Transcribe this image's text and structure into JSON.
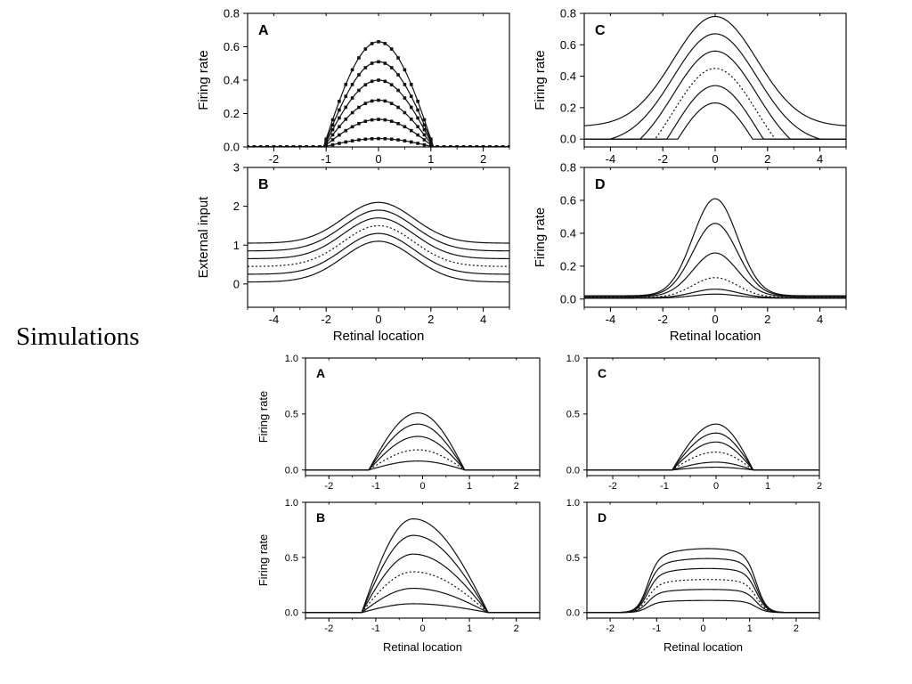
{
  "page": {
    "label": "Simulations"
  },
  "chart_data": [
    {
      "id": "top-A",
      "type": "line",
      "panel_letter": "A",
      "xlabel": "",
      "ylabel": "Firing rate",
      "xlim": [
        -2.5,
        2.5
      ],
      "ylim": [
        0,
        0.8
      ],
      "xticks": [
        -2,
        -1,
        0,
        1,
        2
      ],
      "yticks": [
        0.0,
        0.2,
        0.4,
        0.6,
        0.8
      ],
      "xtick_labels": [
        "-2",
        "-1",
        "0",
        "1",
        "2"
      ],
      "ytick_labels": [
        "0.0",
        "0.2",
        "0.4",
        "0.6",
        "0.8"
      ],
      "markers": true,
      "marker_x_step": 0.125,
      "curve": {
        "shape": "cosine",
        "center": 0,
        "half_width": 1.05
      },
      "series": [
        {
          "peak": 0.63,
          "style": "solid"
        },
        {
          "peak": 0.51,
          "style": "solid"
        },
        {
          "peak": 0.4,
          "style": "solid"
        },
        {
          "peak": 0.28,
          "style": "solid"
        },
        {
          "peak": 0.165,
          "style": "solid"
        },
        {
          "peak": 0.05,
          "style": "solid"
        }
      ]
    },
    {
      "id": "top-B",
      "type": "line",
      "panel_letter": "B",
      "xlabel": "Retinal location",
      "ylabel": "External input",
      "xlim": [
        -5,
        5
      ],
      "ylim": [
        -0.6,
        3
      ],
      "xticks": [
        -4,
        -2,
        0,
        2,
        4
      ],
      "yticks": [
        0,
        1,
        2,
        3
      ],
      "xtick_labels": [
        "-4",
        "-2",
        "0",
        "2",
        "4"
      ],
      "ytick_labels": [
        "0",
        "1",
        "2",
        "3"
      ],
      "markers": false,
      "curve": {
        "shape": "gaussian",
        "center": 0,
        "sigma": 1.35,
        "amplitude": 1.05
      },
      "series": [
        {
          "baseline": 1.05,
          "style": "solid"
        },
        {
          "baseline": 0.85,
          "style": "solid"
        },
        {
          "baseline": 0.65,
          "style": "solid"
        },
        {
          "baseline": 0.45,
          "style": "dotted"
        },
        {
          "baseline": 0.25,
          "style": "solid"
        },
        {
          "baseline": 0.05,
          "style": "solid"
        }
      ]
    },
    {
      "id": "top-C",
      "type": "line",
      "panel_letter": "C",
      "xlabel": "",
      "ylabel": "Firing rate",
      "xlim": [
        -5,
        5
      ],
      "ylim": [
        -0.05,
        0.8
      ],
      "xticks": [
        -4,
        -2,
        0,
        2,
        4
      ],
      "yticks": [
        0.0,
        0.2,
        0.4,
        0.6,
        0.8
      ],
      "xtick_labels": [
        "-4",
        "-2",
        "0",
        "2",
        "4"
      ],
      "ytick_labels": [
        "0.0",
        "0.2",
        "0.4",
        "0.6",
        "0.8"
      ],
      "markers": false,
      "curve": {
        "shape": "gaussian-offset",
        "center": 0,
        "sigma": 1.6,
        "amplitude": 0.7
      },
      "series": [
        {
          "offset": 0.08,
          "style": "solid"
        },
        {
          "offset": -0.03,
          "style": "solid"
        },
        {
          "offset": -0.14,
          "style": "solid"
        },
        {
          "offset": -0.25,
          "style": "dotted"
        },
        {
          "offset": -0.36,
          "style": "solid"
        },
        {
          "offset": -0.47,
          "style": "solid"
        }
      ]
    },
    {
      "id": "top-D",
      "type": "line",
      "panel_letter": "D",
      "xlabel": "Retinal location",
      "ylabel": "Firing rate",
      "xlim": [
        -5,
        5
      ],
      "ylim": [
        -0.05,
        0.8
      ],
      "xticks": [
        -4,
        -2,
        0,
        2,
        4
      ],
      "yticks": [
        0.0,
        0.2,
        0.4,
        0.6,
        0.8
      ],
      "xtick_labels": [
        "-4",
        "-2",
        "0",
        "2",
        "4"
      ],
      "ytick_labels": [
        "0.0",
        "0.2",
        "0.4",
        "0.6",
        "0.8"
      ],
      "markers": false,
      "curve": {
        "shape": "gaussian",
        "center": 0,
        "sigma": 0.85
      },
      "series": [
        {
          "peak": 0.61,
          "baseline": 0.02,
          "style": "solid"
        },
        {
          "peak": 0.46,
          "baseline": 0.018,
          "style": "solid"
        },
        {
          "peak": 0.28,
          "baseline": 0.015,
          "style": "solid"
        },
        {
          "peak": 0.13,
          "baseline": 0.01,
          "style": "dotted"
        },
        {
          "peak": 0.06,
          "baseline": 0.008,
          "style": "solid"
        },
        {
          "peak": 0.03,
          "baseline": 0.005,
          "style": "solid"
        }
      ]
    },
    {
      "id": "bottom-A",
      "type": "line",
      "panel_letter": "A",
      "xlabel": "",
      "ylabel": "Firing rate",
      "xlim": [
        -2.5,
        2.5
      ],
      "ylim": [
        -0.05,
        1.0
      ],
      "xticks": [
        -2,
        -1,
        0,
        1,
        2
      ],
      "yticks": [
        0.0,
        0.5,
        1.0
      ],
      "xtick_labels": [
        "-2",
        "-1",
        "0",
        "1",
        "2"
      ],
      "ytick_labels": [
        "0.0",
        "0.5",
        "1.0"
      ],
      "markers": false,
      "curve": {
        "shape": "cosine-skewed",
        "center": -0.1,
        "left_width": 1.05,
        "right_width": 1.0
      },
      "series": [
        {
          "peak": 0.51,
          "style": "solid"
        },
        {
          "peak": 0.41,
          "style": "solid"
        },
        {
          "peak": 0.3,
          "style": "solid"
        },
        {
          "peak": 0.18,
          "style": "dotted"
        },
        {
          "peak": 0.08,
          "style": "solid"
        }
      ]
    },
    {
      "id": "bottom-B",
      "type": "line",
      "panel_letter": "B",
      "xlabel": "Retinal location",
      "ylabel": "Firing rate",
      "xlim": [
        -2.5,
        2.5
      ],
      "ylim": [
        -0.05,
        1.0
      ],
      "xticks": [
        -2,
        -1,
        0,
        1,
        2
      ],
      "yticks": [
        0.0,
        0.5,
        1.0
      ],
      "xtick_labels": [
        "-2",
        "-1",
        "0",
        "1",
        "2"
      ],
      "ytick_labels": [
        "0.0",
        "0.5",
        "1.0"
      ],
      "markers": false,
      "curve": {
        "shape": "cosine-skewed",
        "center": -0.2,
        "left_width": 1.1,
        "right_width": 1.6
      },
      "series": [
        {
          "peak": 0.85,
          "style": "solid"
        },
        {
          "peak": 0.7,
          "style": "solid"
        },
        {
          "peak": 0.53,
          "style": "solid"
        },
        {
          "peak": 0.37,
          "style": "dotted"
        },
        {
          "peak": 0.22,
          "style": "solid"
        },
        {
          "peak": 0.08,
          "style": "solid"
        }
      ]
    },
    {
      "id": "bottom-C",
      "type": "line",
      "panel_letter": "C",
      "xlabel": "",
      "ylabel": "",
      "xlim": [
        -2.5,
        2
      ],
      "ylim": [
        -0.05,
        1.0
      ],
      "xticks": [
        -2,
        -1,
        0,
        1,
        2
      ],
      "yticks": [
        0.0,
        0.5,
        1.0
      ],
      "xtick_labels": [
        "-2",
        "-1",
        "0",
        "1",
        "2"
      ],
      "ytick_labels": [
        "0.0",
        "0.5",
        "1.0"
      ],
      "markers": false,
      "curve": {
        "shape": "cosine-skewed",
        "center": 0.0,
        "left_width": 0.85,
        "right_width": 0.72
      },
      "series": [
        {
          "peak": 0.41,
          "style": "solid"
        },
        {
          "peak": 0.33,
          "style": "solid"
        },
        {
          "peak": 0.25,
          "style": "solid"
        },
        {
          "peak": 0.16,
          "style": "dotted"
        },
        {
          "peak": 0.07,
          "style": "solid"
        },
        {
          "peak": 0.025,
          "style": "solid"
        }
      ]
    },
    {
      "id": "bottom-D",
      "type": "line",
      "panel_letter": "D",
      "xlabel": "Retinal location",
      "ylabel": "",
      "xlim": [
        -2.5,
        2.5
      ],
      "ylim": [
        -0.05,
        1.0
      ],
      "xticks": [
        -2,
        -1,
        0,
        1,
        2
      ],
      "yticks": [
        0.0,
        0.5,
        1.0
      ],
      "xtick_labels": [
        "-2",
        "-1",
        "0",
        "1",
        "2"
      ],
      "ytick_labels": [
        "0.0",
        "0.5",
        "1.0"
      ],
      "markers": false,
      "curve": {
        "shape": "plateau",
        "center": 0.1,
        "left_edge": -1.2,
        "right_edge": 1.15,
        "steepness": 9
      },
      "series": [
        {
          "peak": 0.58,
          "style": "solid"
        },
        {
          "peak": 0.49,
          "style": "solid"
        },
        {
          "peak": 0.4,
          "style": "solid"
        },
        {
          "peak": 0.3,
          "style": "dotted"
        },
        {
          "peak": 0.21,
          "style": "solid"
        },
        {
          "peak": 0.11,
          "style": "solid"
        }
      ]
    }
  ]
}
